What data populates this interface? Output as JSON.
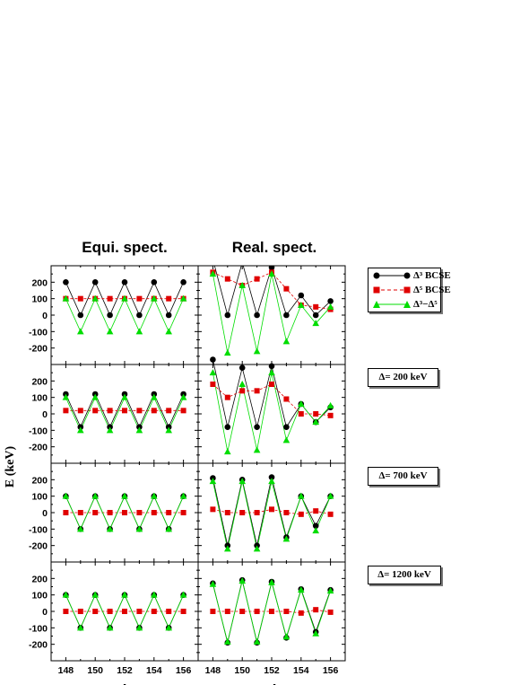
{
  "figure": {
    "col_titles": [
      "Equi. spect.",
      "Real. spect."
    ],
    "ylabel": "E (keV)",
    "xlabel": "A",
    "legend": {
      "bcse3": "Δ³ BCSE",
      "bcse5": "Δ⁵ BCSE",
      "diff": "Δ³−Δ⁵"
    },
    "delta_boxes": [
      "Δ= 200 keV",
      "Δ= 700 keV",
      "Δ= 1200 keV"
    ],
    "colors": {
      "bcse3": "#000000",
      "bcse5": "#e00000",
      "diff": "#00dd00"
    }
  },
  "chart_data": {
    "type": "line",
    "x": [
      148,
      149,
      150,
      151,
      152,
      153,
      154,
      155,
      156
    ],
    "xticks": [
      148,
      150,
      152,
      154,
      156
    ],
    "xlim": [
      147,
      157
    ],
    "ylim": [
      -300,
      300
    ],
    "yticks": [
      -200,
      -100,
      0,
      100,
      200
    ],
    "panels": [
      {
        "row": 0,
        "col": 0,
        "series": {
          "bcse3": [
            200,
            0,
            200,
            0,
            200,
            0,
            200,
            0,
            200
          ],
          "bcse5": [
            100,
            100,
            100,
            100,
            100,
            100,
            100,
            100,
            100
          ],
          "diff": [
            100,
            -100,
            100,
            -100,
            100,
            -100,
            100,
            -100,
            100
          ]
        }
      },
      {
        "row": 0,
        "col": 1,
        "series": {
          "bcse3": [
            340,
            0,
            320,
            0,
            290,
            0,
            120,
            0,
            85
          ],
          "bcse5": [
            260,
            220,
            180,
            220,
            260,
            160,
            60,
            50,
            35
          ],
          "diff": [
            250,
            -230,
            180,
            -220,
            250,
            -160,
            60,
            -50,
            50
          ]
        }
      },
      {
        "row": 1,
        "col": 0,
        "series": {
          "bcse3": [
            120,
            -80,
            120,
            -80,
            120,
            -80,
            120,
            -80,
            120
          ],
          "bcse5": [
            20,
            20,
            20,
            20,
            20,
            20,
            20,
            20,
            20
          ],
          "diff": [
            100,
            -100,
            100,
            -100,
            100,
            -100,
            100,
            -100,
            100
          ]
        }
      },
      {
        "row": 1,
        "col": 1,
        "series": {
          "bcse3": [
            330,
            -80,
            280,
            -80,
            290,
            -80,
            60,
            -50,
            40
          ],
          "bcse5": [
            180,
            100,
            140,
            140,
            180,
            90,
            0,
            0,
            -10
          ],
          "diff": [
            250,
            -230,
            180,
            -220,
            250,
            -160,
            60,
            -50,
            50
          ]
        }
      },
      {
        "row": 2,
        "col": 0,
        "series": {
          "bcse3": [
            100,
            -100,
            100,
            -100,
            100,
            -100,
            100,
            -100,
            100
          ],
          "bcse5": [
            0,
            0,
            0,
            0,
            0,
            0,
            0,
            0,
            0
          ],
          "diff": [
            100,
            -100,
            100,
            -100,
            100,
            -100,
            100,
            -100,
            100
          ]
        }
      },
      {
        "row": 2,
        "col": 1,
        "series": {
          "bcse3": [
            210,
            -200,
            200,
            -200,
            215,
            -150,
            100,
            -80,
            100
          ],
          "bcse5": [
            20,
            0,
            0,
            0,
            20,
            0,
            -10,
            10,
            -10
          ],
          "diff": [
            190,
            -220,
            190,
            -220,
            190,
            -160,
            100,
            -110,
            100
          ]
        }
      },
      {
        "row": 3,
        "col": 0,
        "series": {
          "bcse3": [
            100,
            -100,
            100,
            -100,
            100,
            -100,
            100,
            -100,
            100
          ],
          "bcse5": [
            0,
            0,
            0,
            0,
            0,
            0,
            0,
            0,
            0
          ],
          "diff": [
            100,
            -100,
            100,
            -100,
            100,
            -100,
            100,
            -100,
            100
          ]
        }
      },
      {
        "row": 3,
        "col": 1,
        "series": {
          "bcse3": [
            170,
            -190,
            190,
            -190,
            180,
            -160,
            135,
            -125,
            130
          ],
          "bcse5": [
            0,
            0,
            0,
            0,
            0,
            0,
            -10,
            10,
            -5
          ],
          "diff": [
            165,
            -185,
            185,
            -185,
            175,
            -155,
            130,
            -135,
            125
          ]
        }
      }
    ]
  }
}
